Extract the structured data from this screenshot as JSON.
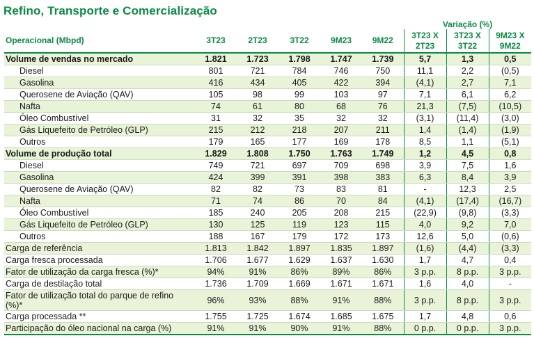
{
  "title": "Refino, Transporte e Comercialização",
  "variacao_header": "Variação (%)",
  "columns": {
    "label": "Operacional (Mbpd)",
    "c1": "3T23",
    "c2": "2T23",
    "c3": "3T22",
    "c4": "9M23",
    "c5": "9M22",
    "v1a": "3T23 X",
    "v1b": "2T23",
    "v2a": "3T23 X",
    "v2b": "3T22",
    "v3a": "9M23 X",
    "v3b": "9M22"
  },
  "rows": [
    {
      "label": "Volume de vendas no mercado",
      "vals": [
        "1.821",
        "1.723",
        "1.798",
        "1.747",
        "1.739",
        "5,7",
        "1,3",
        "0,5"
      ]
    },
    {
      "label": "Diesel",
      "vals": [
        "801",
        "721",
        "784",
        "746",
        "750",
        "11,1",
        "2,2",
        "(0,5)"
      ]
    },
    {
      "label": "Gasolina",
      "vals": [
        "416",
        "434",
        "405",
        "422",
        "394",
        "(4,1)",
        "2,7",
        "7,1"
      ]
    },
    {
      "label": "Querosene de Aviação (QAV)",
      "vals": [
        "105",
        "98",
        "99",
        "103",
        "97",
        "7,1",
        "6,1",
        "6,2"
      ]
    },
    {
      "label": "Nafta",
      "vals": [
        "74",
        "61",
        "80",
        "68",
        "76",
        "21,3",
        "(7,5)",
        "(10,5)"
      ]
    },
    {
      "label": "Óleo Combustível",
      "vals": [
        "31",
        "32",
        "35",
        "32",
        "32",
        "(3,1)",
        "(11,4)",
        "(3,0)"
      ]
    },
    {
      "label": "Gás Liquefeito de Petróleo (GLP)",
      "vals": [
        "215",
        "212",
        "218",
        "207",
        "211",
        "1,4",
        "(1,4)",
        "(1,9)"
      ]
    },
    {
      "label": "Outros",
      "vals": [
        "179",
        "165",
        "177",
        "169",
        "178",
        "8,5",
        "1,1",
        "(5,1)"
      ]
    },
    {
      "label": "Volume de produção total",
      "vals": [
        "1.829",
        "1.808",
        "1.750",
        "1.763",
        "1.749",
        "1,2",
        "4,5",
        "0,8"
      ]
    },
    {
      "label": "Diesel",
      "vals": [
        "749",
        "721",
        "697",
        "709",
        "698",
        "3,9",
        "7,5",
        "1,6"
      ]
    },
    {
      "label": "Gasolina",
      "vals": [
        "424",
        "399",
        "391",
        "398",
        "383",
        "6,3",
        "8,4",
        "3,9"
      ]
    },
    {
      "label": "Querosene de Aviação (QAV)",
      "vals": [
        "82",
        "82",
        "73",
        "83",
        "81",
        "-",
        "12,3",
        "2,5"
      ]
    },
    {
      "label": "Nafta",
      "vals": [
        "71",
        "74",
        "86",
        "70",
        "84",
        "(4,1)",
        "(17,4)",
        "(16,7)"
      ]
    },
    {
      "label": "Óleo Combustível",
      "vals": [
        "185",
        "240",
        "205",
        "208",
        "215",
        "(22,9)",
        "(9,8)",
        "(3,3)"
      ]
    },
    {
      "label": "Gás Liquefeito de Petróleo (GLP)",
      "vals": [
        "130",
        "125",
        "119",
        "123",
        "115",
        "4,0",
        "9,2",
        "7,0"
      ]
    },
    {
      "label": "Outros",
      "vals": [
        "188",
        "167",
        "179",
        "172",
        "173",
        "12,6",
        "5,0",
        "(0,6)"
      ]
    },
    {
      "label": "Carga de referência",
      "vals": [
        "1.813",
        "1.842",
        "1.897",
        "1.835",
        "1.897",
        "(1,6)",
        "(4,4)",
        "(3,3)"
      ]
    },
    {
      "label": "Carga fresca processada",
      "vals": [
        "1.706",
        "1.677",
        "1.629",
        "1.637",
        "1.630",
        "1,7",
        "4,7",
        "0,4"
      ]
    },
    {
      "label": "Fator de utilização da carga fresca (%)*",
      "vals": [
        "94%",
        "91%",
        "86%",
        "89%",
        "86%",
        "3 p.p.",
        "8 p.p.",
        "3 p.p."
      ]
    },
    {
      "label": "Carga de destilação total",
      "vals": [
        "1.736",
        "1.709",
        "1.669",
        "1.671",
        "1.671",
        "1,6",
        "4,0",
        "-"
      ]
    },
    {
      "label": "Fator de utilização total do parque de refino (%)*",
      "vals": [
        "96%",
        "93%",
        "88%",
        "91%",
        "88%",
        "3 p.p.",
        "8 p.p.",
        "3 p.p."
      ]
    },
    {
      "label": "Carga processada **",
      "vals": [
        "1.755",
        "1.725",
        "1.674",
        "1.685",
        "1.675",
        "1,7",
        "4,8",
        "0,6"
      ]
    },
    {
      "label": "Participação do óleo nacional na carga (%)",
      "vals": [
        "91%",
        "91%",
        "90%",
        "91%",
        "88%",
        "0 p.p.",
        "0 p.p.",
        "3 p.p."
      ]
    }
  ]
}
